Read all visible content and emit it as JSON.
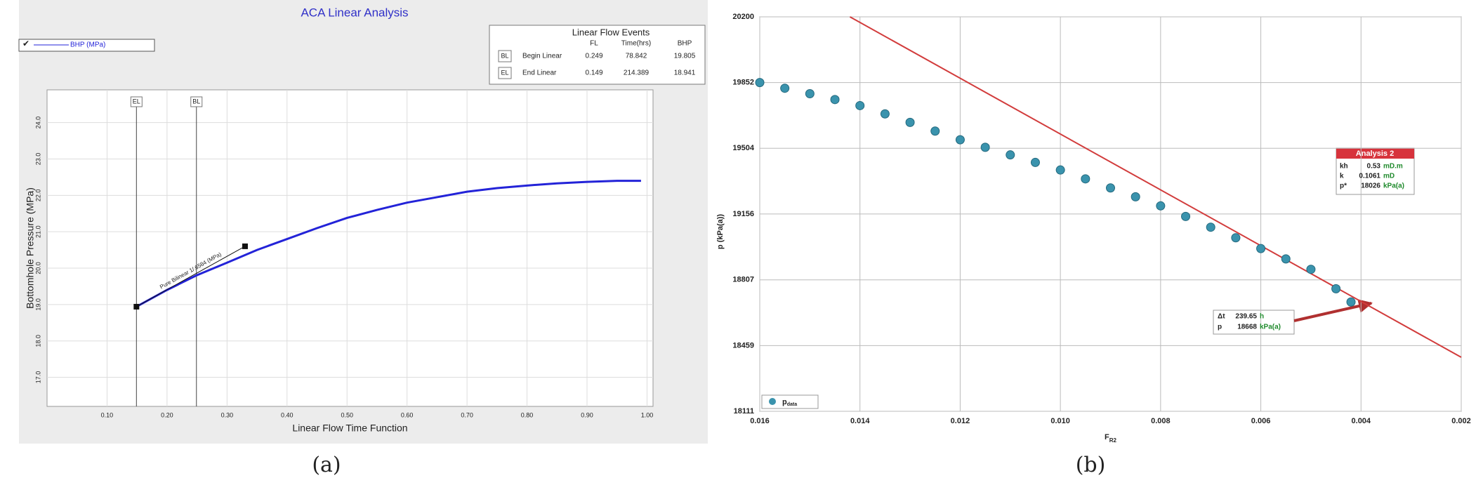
{
  "chart_data": [
    {
      "type": "line",
      "title": "ACA Linear Analysis",
      "xlabel": "Linear Flow Time Function",
      "ylabel": "Bottomhole Pressure (MPa)",
      "x": [
        0.149,
        0.2,
        0.249,
        0.3,
        0.35,
        0.4,
        0.45,
        0.5,
        0.55,
        0.6,
        0.65,
        0.7,
        0.75,
        0.8,
        0.85,
        0.9,
        0.95,
        0.99
      ],
      "series": [
        {
          "name": "BHP (MPa)",
          "color": "#2323d8",
          "values": [
            18.94,
            19.4,
            19.8,
            20.15,
            20.5,
            20.8,
            21.1,
            21.38,
            21.6,
            21.8,
            21.95,
            22.1,
            22.2,
            22.27,
            22.33,
            22.37,
            22.4,
            22.4
          ]
        }
      ],
      "xlim": [
        0,
        1.01
      ],
      "xticks": [
        {
          "value": 0.1,
          "label": "0.10"
        },
        {
          "value": 0.2,
          "label": "0.20"
        },
        {
          "value": 0.3,
          "label": "0.30"
        },
        {
          "value": 0.4,
          "label": "0.40"
        },
        {
          "value": 0.5,
          "label": "0.50"
        },
        {
          "value": 0.6,
          "label": "0.60"
        },
        {
          "value": 0.7,
          "label": "0.70"
        },
        {
          "value": 0.8,
          "label": "0.80"
        },
        {
          "value": 0.9,
          "label": "0.90"
        },
        {
          "value": 1,
          "label": "1.00"
        }
      ],
      "ylim": [
        16.2,
        24.9
      ],
      "yticks": [
        {
          "value": 17,
          "label": "17.0"
        },
        {
          "value": 18,
          "label": "18.0"
        },
        {
          "value": 19,
          "label": "19.0"
        },
        {
          "value": 20,
          "label": "20.0"
        },
        {
          "value": 21,
          "label": "21.0"
        },
        {
          "value": 22,
          "label": "22.0"
        },
        {
          "value": 23,
          "label": "23.0"
        },
        {
          "value": 24,
          "label": "24.0"
        }
      ],
      "grid": true,
      "markers": [
        {
          "label": "EL",
          "x": 0.149
        },
        {
          "label": "BL",
          "x": 0.249
        }
      ],
      "annotation": {
        "text": "Pure Bilinear 1/.6584 (MPa)",
        "x": [
          0.149,
          0.33
        ],
        "y": [
          18.94,
          20.6
        ]
      },
      "events_table": {
        "title": "Linear Flow Events",
        "headers": [
          "FL",
          "Time(hrs)",
          "BHP"
        ],
        "rows": [
          {
            "code": "BL",
            "label": "Begin Linear",
            "values": [
              0.249,
              78.842,
              19.805
            ]
          },
          {
            "code": "EL",
            "label": "End Linear",
            "values": [
              0.149,
              214.389,
              18.941
            ]
          }
        ]
      },
      "caption": "(a)"
    },
    {
      "type": "scatter",
      "xlabel": "F",
      "xlabel_sub": "R2",
      "ylabel": "p  (kPa(a))",
      "series": [
        {
          "name": "p",
          "name_sub": "data",
          "color": "#3a93ad",
          "x": [
            0.016,
            0.0155,
            0.015,
            0.0145,
            0.014,
            0.0135,
            0.013,
            0.0125,
            0.012,
            0.0115,
            0.011,
            0.0105,
            0.01,
            0.0095,
            0.009,
            0.0085,
            0.008,
            0.0075,
            0.007,
            0.0065,
            0.006,
            0.0055,
            0.005,
            0.0045,
            0.0042
          ],
          "values": [
            19852,
            19822,
            19793,
            19762,
            19730,
            19686,
            19641,
            19595,
            19549,
            19509,
            19469,
            19429,
            19389,
            19342,
            19294,
            19247,
            19199,
            19143,
            19086,
            19030,
            18973,
            18918,
            18863,
            18760,
            18690
          ]
        }
      ],
      "trend_line": {
        "color": "#d23c3c",
        "x": [
          0.0142,
          0.002
        ],
        "values": [
          20200,
          18397
        ]
      },
      "xlim": [
        0.016,
        0.002
      ],
      "xticks": [
        0.016,
        0.014,
        0.012,
        {
          "value": 0.01,
          "label": "0.010"
        },
        0.008,
        0.006,
        0.004,
        0.002
      ],
      "ylim": [
        18111,
        20200
      ],
      "yticks": [
        18111,
        18459,
        18807,
        19156,
        19504,
        19852,
        20200
      ],
      "grid": true,
      "legend": "lower left",
      "analysis_box": {
        "title": "Analysis 2",
        "rows": [
          {
            "label": "kh",
            "value": 0.53,
            "unit": "mD.m"
          },
          {
            "label": "k",
            "value": 0.1061,
            "unit": "mD"
          },
          {
            "label": "p*",
            "value": 18026,
            "unit": "kPa(a)"
          }
        ]
      },
      "point_box": {
        "rows": [
          {
            "label": "Δt",
            "value": 239.65,
            "unit": "h"
          },
          {
            "label": "p",
            "value": 18668,
            "unit": "kPa(a)"
          }
        ]
      },
      "caption": "(b)"
    }
  ]
}
